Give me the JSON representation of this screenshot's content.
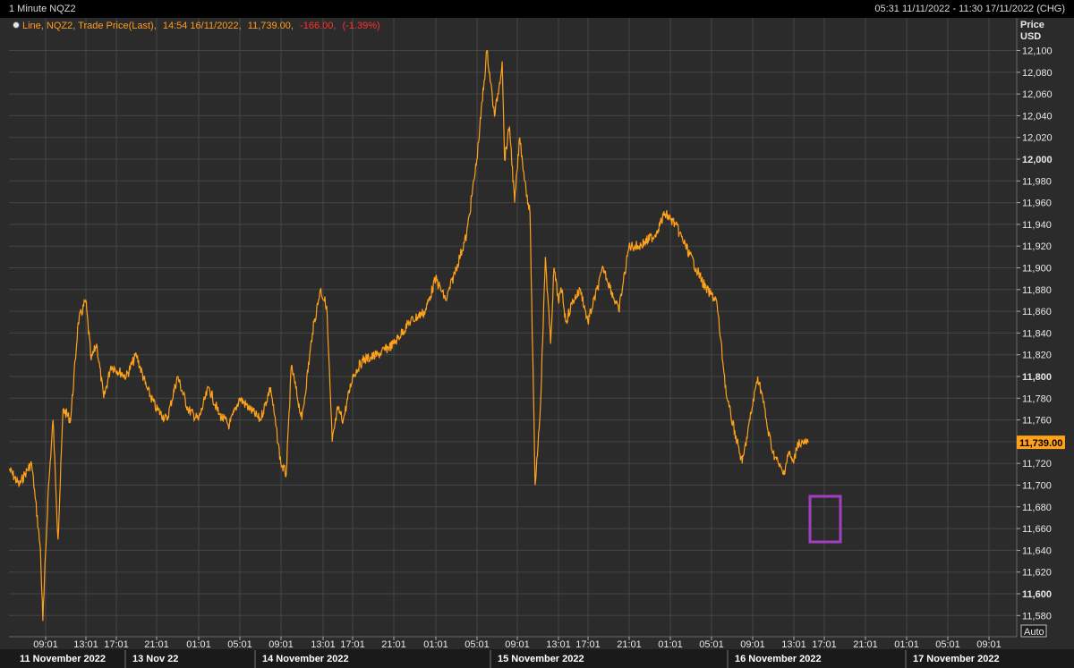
{
  "window": {
    "title": "1 Minute NQZ2",
    "range_text": "05:31 11/11/2022 - 11:30 17/11/2022 (CHG)"
  },
  "legend": {
    "series_text": "Line, NQZ2, Trade Price(Last),",
    "time_text": "14:54 16/11/2022,",
    "value_text": "11,739.00,",
    "change_text": "-166.00,",
    "change_pct_text": "(-1.39%)"
  },
  "axis": {
    "unit_line1": "Price",
    "unit_line2": "USD",
    "auto_label": "Auto"
  },
  "colors": {
    "line": "#ffa21a",
    "background": "#2b2b2b",
    "grid": "#454545",
    "negative": "#ff3030",
    "last_price_tag": "#ffa21a",
    "highlight_box": "#a040c0"
  },
  "chart_data": {
    "type": "line",
    "symbol": "NQZ2",
    "last_price_label": "11,739.00",
    "ylim": [
      11560,
      12120
    ],
    "y_ticks": [
      "11,580",
      "11,600",
      "11,620",
      "11,640",
      "11,660",
      "11,680",
      "11,700",
      "11,720",
      "11,740",
      "11,760",
      "11,780",
      "11,800",
      "11,820",
      "11,840",
      "11,860",
      "11,880",
      "11,900",
      "11,920",
      "11,940",
      "11,960",
      "11,980",
      "12,000",
      "12,020",
      "12,040",
      "12,060",
      "12,080",
      "12,100"
    ],
    "y_tick_values": [
      11580,
      11600,
      11620,
      11640,
      11660,
      11680,
      11700,
      11720,
      11740,
      11760,
      11780,
      11800,
      11820,
      11840,
      11860,
      11880,
      11900,
      11920,
      11940,
      11960,
      11980,
      12000,
      12020,
      12040,
      12060,
      12080,
      12100
    ],
    "y_bold_values": [
      11600,
      11800,
      12000
    ],
    "x_tick_labels": [
      "09:01",
      "13:01",
      "17:01",
      "21:01",
      "01:01",
      "05:01",
      "09:01",
      "13:01",
      "17:01",
      "21:01",
      "01:01",
      "05:01",
      "09:01",
      "13:01",
      "17:01",
      "21:01",
      "01:01",
      "05:01",
      "09:01",
      "13:01",
      "17:01",
      "21:01",
      "01:01",
      "05:01",
      "09:01"
    ],
    "date_labels": [
      "11 November 2022",
      "13 Nov 22",
      "14 November 2022",
      "15 November 2022",
      "16 November 2022",
      "17 November 2022"
    ],
    "series": [
      {
        "x": [
          "11/11 05:31",
          "11/11 06:30",
          "11/11 07:00",
          "11/11 07:40",
          "11/11 08:00",
          "11/11 08:31",
          "11/11 08:45",
          "11/11 09:15",
          "11/11 09:45",
          "11/11 10:15",
          "11/11 10:45",
          "11/11 11:30",
          "11/11 12:15",
          "11/11 13:00",
          "11/11 13:45",
          "11/11 14:30",
          "11/11 15:30",
          "11/11 16:30",
          "13/11 18:00",
          "13/11 19:00",
          "13/11 20:00",
          "13/11 21:00",
          "13/11 22:00",
          "13/11 23:00",
          "14/11 00:00",
          "14/11 01:00",
          "14/11 02:00",
          "14/11 03:00",
          "14/11 04:00",
          "14/11 05:00",
          "14/11 06:00",
          "14/11 07:00",
          "14/11 08:00",
          "14/11 09:00",
          "14/11 09:31",
          "14/11 10:00",
          "14/11 11:00",
          "14/11 12:00",
          "14/11 12:45",
          "14/11 13:30",
          "14/11 14:15",
          "14/11 15:00",
          "14/11 15:45",
          "14/11 17:00",
          "14/11 18:00",
          "14/11 19:30",
          "14/11 21:00",
          "14/11 22:30",
          "15/11 00:00",
          "15/11 01:00",
          "15/11 02:00",
          "15/11 03:00",
          "15/11 04:00",
          "15/11 05:00",
          "15/11 06:00",
          "15/11 06:45",
          "15/11 07:15",
          "15/11 07:31",
          "15/11 07:45",
          "15/11 08:15",
          "15/11 08:45",
          "15/11 09:15",
          "15/11 09:45",
          "15/11 10:15",
          "15/11 10:45",
          "15/11 11:15",
          "15/11 11:45",
          "15/11 12:15",
          "15/11 12:35",
          "15/11 13:00",
          "15/11 13:30",
          "15/11 14:00",
          "15/11 15:00",
          "15/11 16:00",
          "15/11 17:00",
          "15/11 18:30",
          "15/11 20:00",
          "15/11 21:00",
          "15/11 22:00",
          "15/11 23:30",
          "16/11 00:30",
          "16/11 01:30",
          "16/11 02:30",
          "16/11 03:30",
          "16/11 04:30",
          "16/11 05:30",
          "16/11 06:30",
          "16/11 07:30",
          "16/11 08:00",
          "16/11 08:45",
          "16/11 09:30",
          "16/11 10:00",
          "16/11 10:30",
          "16/11 11:00",
          "16/11 11:30",
          "16/11 12:00",
          "16/11 12:30",
          "16/11 13:00",
          "16/11 13:30",
          "16/11 14:00",
          "16/11 14:30",
          "16/11 14:54"
        ],
        "y": [
          11715,
          11700,
          11710,
          11720,
          11690,
          11640,
          11575,
          11690,
          11760,
          11650,
          11770,
          11760,
          11850,
          11870,
          11815,
          11830,
          11780,
          11810,
          11800,
          11820,
          11790,
          11770,
          11760,
          11800,
          11770,
          11760,
          11790,
          11765,
          11755,
          11780,
          11770,
          11760,
          11790,
          11720,
          11710,
          11810,
          11760,
          11840,
          11880,
          11865,
          11740,
          11770,
          11760,
          11800,
          11815,
          11820,
          11830,
          11850,
          11860,
          11890,
          11870,
          11900,
          11930,
          12000,
          12100,
          12040,
          12070,
          12090,
          12000,
          12030,
          11960,
          12020,
          11980,
          11950,
          11700,
          11770,
          11910,
          11830,
          11900,
          11870,
          11880,
          11850,
          11870,
          11880,
          11850,
          11900,
          11860,
          11920,
          11920,
          11930,
          11950,
          11940,
          11920,
          11900,
          11880,
          11870,
          11780,
          11740,
          11720,
          11760,
          11800,
          11780,
          11750,
          11730,
          11720,
          11710,
          11730,
          11720,
          11739,
          11739,
          11739,
          11739
        ]
      }
    ]
  }
}
